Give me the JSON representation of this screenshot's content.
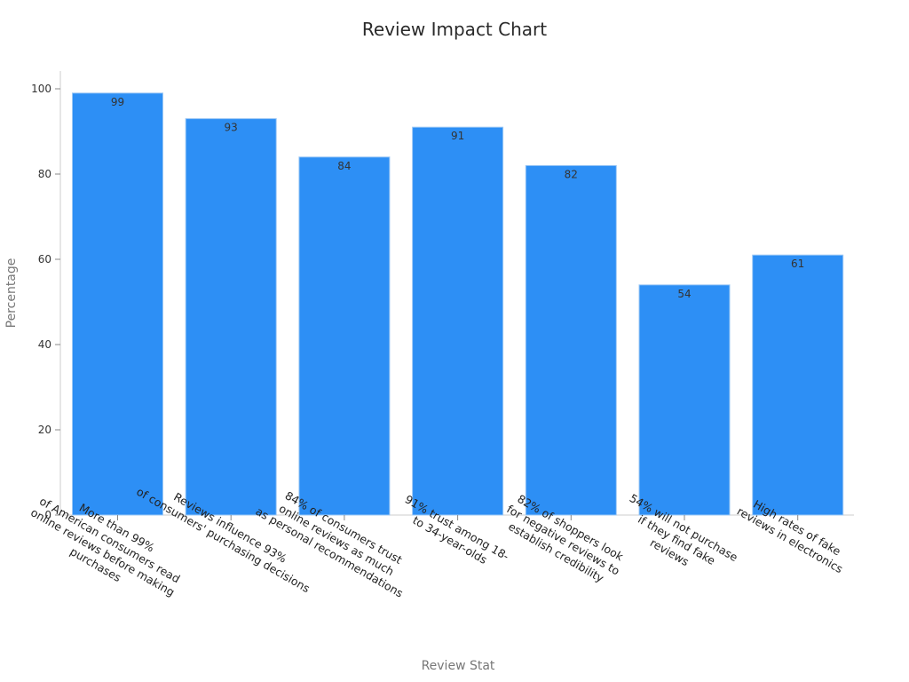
{
  "chart_data": {
    "type": "bar",
    "title": "Review Impact Chart",
    "xlabel": "Review Stat",
    "ylabel": "Percentage",
    "ylim": [
      0,
      100
    ],
    "yticks": [
      0,
      20,
      40,
      60,
      80,
      100
    ],
    "grid": false,
    "legend": "none",
    "bar_color": "#2d8ff5",
    "categories": [
      [
        "More than 99%",
        "of American consumers read",
        "online reviews before making",
        "purchases"
      ],
      [
        "Reviews influence 93%",
        "of consumers' purchasing decisions"
      ],
      [
        "84% of consumers trust",
        "online reviews as much",
        "as personal recommendations"
      ],
      [
        "91% trust among 18-",
        "to 34-year-olds"
      ],
      [
        "82% of shoppers look",
        "for negative reviews to",
        "establish credibility"
      ],
      [
        "54% will not purchase",
        "if they find fake",
        "reviews"
      ],
      [
        "High rates of fake",
        "reviews in electronics"
      ]
    ],
    "values": [
      99,
      93,
      84,
      91,
      82,
      54,
      61
    ]
  }
}
